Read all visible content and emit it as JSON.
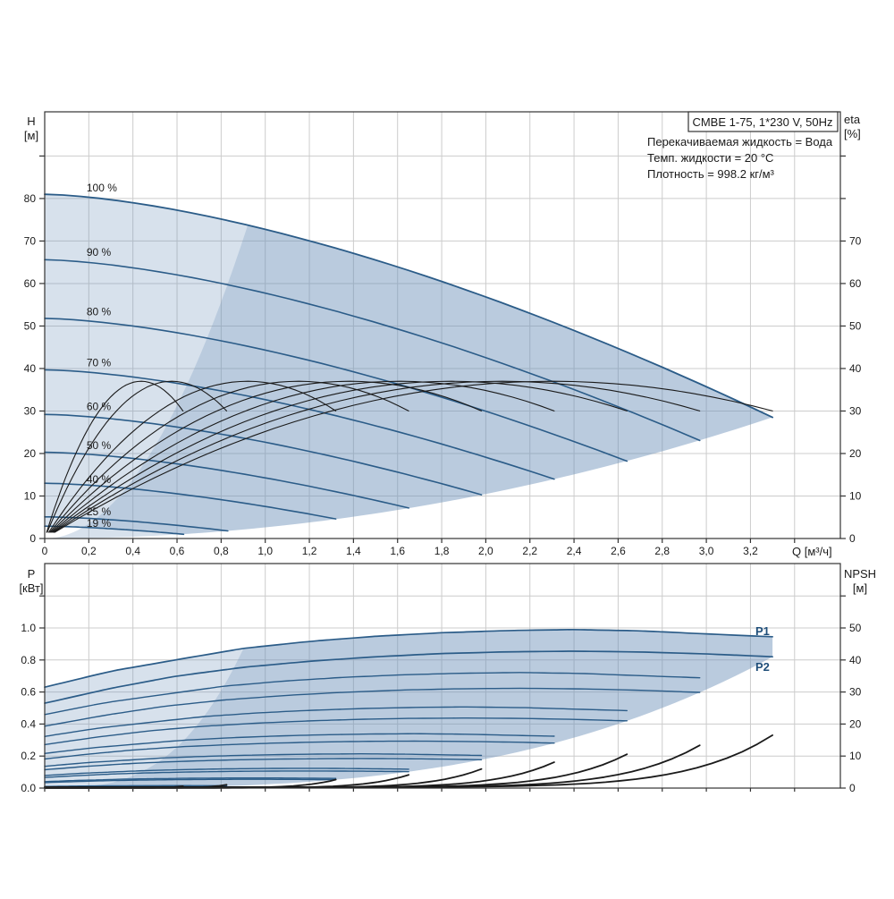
{
  "header": {
    "model_box_label": "CMBE 1-75, 1*230 V, 50Hz",
    "info_lines": [
      "Перекачиваемая жидкость = Вода",
      "Темп. жидкости = 20 °C",
      "Плотность = 998.2 кг/м³"
    ]
  },
  "colors": {
    "curve_blue": "#2b5c88",
    "curve_black": "#1a1a1a",
    "envelope_fill": "rgba(109,144,185,0.27)",
    "grid": "#cccccc",
    "frame": "#333333",
    "label_blue": "#1f4e79",
    "text": "#1a1a1a"
  },
  "chart_data": [
    {
      "id": "qh-eta-chart",
      "type": "line",
      "title": "",
      "x_axis": {
        "label": "Q [м³/ч]",
        "min": 0,
        "max": 3.6,
        "tick_step": 0.2,
        "tick_labels": [
          "0",
          "0,2",
          "0,4",
          "0,6",
          "0,8",
          "1,0",
          "1,2",
          "1,4",
          "1,6",
          "1,8",
          "2,0",
          "2,2",
          "2,4",
          "2,6",
          "2,8",
          "3,0",
          "3,2"
        ]
      },
      "y_left": {
        "label": "H",
        "unit": "[м]",
        "min": 0,
        "max": 100,
        "tick_step": 10,
        "tick_labels": [
          "0",
          "10",
          "20",
          "30",
          "40",
          "50",
          "60",
          "70",
          "80"
        ]
      },
      "y_right": {
        "label": "eta",
        "unit": "[%]",
        "min": 0,
        "max": 100,
        "tick_step": 10,
        "tick_labels": [
          "0",
          "10",
          "20",
          "30",
          "40",
          "50",
          "60",
          "70"
        ]
      },
      "speed_curves": [
        {
          "label": "100 %",
          "speed_pct": 100,
          "shutoff_head_m": 81.0,
          "q_end": 3.3,
          "h_end": 28.5,
          "label_h": 82.5
        },
        {
          "label": "90 %",
          "speed_pct": 90,
          "shutoff_head_m": 65.6,
          "q_end": 2.97,
          "h_end": 23.1,
          "label_h": 67.4
        },
        {
          "label": "80 %",
          "speed_pct": 80,
          "shutoff_head_m": 51.8,
          "q_end": 2.64,
          "h_end": 18.2,
          "label_h": 53.4
        },
        {
          "label": "70 %",
          "speed_pct": 70,
          "shutoff_head_m": 39.7,
          "q_end": 2.31,
          "h_end": 14.0,
          "label_h": 41.4
        },
        {
          "label": "60 %",
          "speed_pct": 60,
          "shutoff_head_m": 29.2,
          "q_end": 1.98,
          "h_end": 10.3,
          "label_h": 31.0
        },
        {
          "label": "50 %",
          "speed_pct": 50,
          "shutoff_head_m": 20.3,
          "q_end": 1.65,
          "h_end": 7.1,
          "label_h": 21.9
        },
        {
          "label": "40 %",
          "speed_pct": 40,
          "shutoff_head_m": 13.0,
          "q_end": 1.32,
          "h_end": 4.6,
          "label_h": 13.9
        },
        {
          "label": "25 %",
          "speed_pct": 25,
          "shutoff_head_m": 5.1,
          "q_end": 0.83,
          "h_end": 1.8,
          "label_h": 6.3
        },
        {
          "label": "19 %",
          "speed_pct": 19,
          "shutoff_head_m": 2.9,
          "q_end": 0.63,
          "h_end": 1.0,
          "label_h": 3.6
        }
      ],
      "curve_model": {
        "h_coef": 8.25,
        "h_exp": 1.55,
        "q_max_100pct": 3.3
      },
      "efficiency_curves": {
        "eta_max_pct": 37,
        "q_at_bep_100pct": 2.3,
        "eta_at_q_end_pct": 30
      },
      "envelope": {
        "min_flow_parabola_coef": 87,
        "end_locus_h_coef": 2.62
      }
    },
    {
      "id": "power-npsh-chart",
      "type": "line",
      "title": "",
      "x_axis": {
        "label": "",
        "min": 0,
        "max": 3.6,
        "tick_step": 0.2
      },
      "y_left": {
        "label": "P",
        "unit": "[кВт]",
        "min": 0,
        "max": 1.4,
        "tick_step": 0.2,
        "tick_labels": [
          "0.0",
          "0.2",
          "0.4",
          "0.6",
          "0.8",
          "1.0"
        ]
      },
      "y_right": {
        "label": "NPSH",
        "unit": "[м]",
        "min": 0,
        "max": 70,
        "tick_step": 10,
        "tick_labels": [
          "0",
          "10",
          "20",
          "30",
          "40",
          "50"
        ]
      },
      "p1_label": "P1",
      "p2_label": "P2",
      "p1_100_curve": [
        [
          0,
          0.63
        ],
        [
          0.3,
          0.73
        ],
        [
          0.6,
          0.802
        ],
        [
          0.9,
          0.872
        ],
        [
          1.2,
          0.916
        ],
        [
          1.5,
          0.948
        ],
        [
          1.8,
          0.97
        ],
        [
          2.1,
          0.984
        ],
        [
          2.4,
          0.99
        ],
        [
          2.7,
          0.982
        ],
        [
          3.0,
          0.963
        ],
        [
          3.3,
          0.945
        ]
      ],
      "p2_100_curve": [
        [
          0,
          0.53
        ],
        [
          0.3,
          0.623
        ],
        [
          0.6,
          0.7
        ],
        [
          0.9,
          0.754
        ],
        [
          1.2,
          0.792
        ],
        [
          1.5,
          0.82
        ],
        [
          1.8,
          0.84
        ],
        [
          2.1,
          0.851
        ],
        [
          2.4,
          0.855
        ],
        [
          2.7,
          0.85
        ],
        [
          3.0,
          0.838
        ],
        [
          3.3,
          0.82
        ]
      ],
      "speeds_pct": [
        100,
        90,
        80,
        70,
        60,
        50,
        40,
        25,
        19
      ],
      "q_max_100pct": 3.3,
      "npsh_model": {
        "base_m": 0.3,
        "rise_m": 16.2,
        "exponent": 9,
        "npsh_end_100pct_m": 16.5
      },
      "envelope": {
        "min_flow_cubic_coef": 1.19,
        "end_locus_p_coef": 0.0228
      }
    }
  ]
}
